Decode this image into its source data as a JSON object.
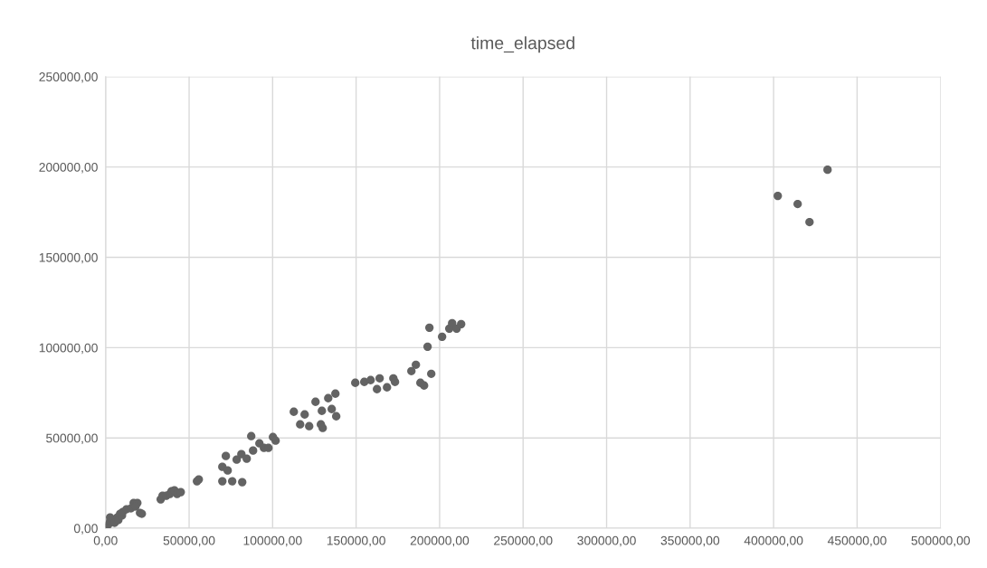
{
  "chart_data": {
    "type": "scatter",
    "title": "time_elapsed",
    "marker": "circle",
    "grid": true,
    "xlim": [
      0,
      500000
    ],
    "ylim": [
      0,
      250000
    ],
    "xticks": [
      {
        "value": 0,
        "label": "0,00"
      },
      {
        "value": 50000,
        "label": "50000,00"
      },
      {
        "value": 100000,
        "label": "100000,00"
      },
      {
        "value": 150000,
        "label": "150000,00"
      },
      {
        "value": 200000,
        "label": "200000,00"
      },
      {
        "value": 250000,
        "label": "250000,00"
      },
      {
        "value": 300000,
        "label": "300000,00"
      },
      {
        "value": 350000,
        "label": "350000,00"
      },
      {
        "value": 400000,
        "label": "400000,00"
      },
      {
        "value": 450000,
        "label": "450000,00"
      },
      {
        "value": 500000,
        "label": "500000,00"
      }
    ],
    "yticks": [
      {
        "value": 0,
        "label": "0,00"
      },
      {
        "value": 50000,
        "label": "50000,00"
      },
      {
        "value": 100000,
        "label": "100000,00"
      },
      {
        "value": 150000,
        "label": "150000,00"
      },
      {
        "value": 200000,
        "label": "200000,00"
      },
      {
        "value": 250000,
        "label": "250000,00"
      }
    ],
    "series": [
      {
        "color": "#636363",
        "x": [
          500,
          1600,
          2700,
          2700,
          5400,
          7000,
          7600,
          8700,
          9800,
          10300,
          12500,
          15200,
          16800,
          19000,
          17900,
          20600,
          21700,
          33000,
          34100,
          36300,
          38500,
          39500,
          41200,
          42800,
          45000,
          54700,
          55800,
          69900,
          69900,
          72000,
          73100,
          75800,
          78500,
          81300,
          81800,
          84500,
          87200,
          88300,
          92100,
          94800,
          97500,
          100200,
          101800,
          112700,
          116500,
          119200,
          121900,
          125700,
          129500,
          128900,
          130000,
          133300,
          135400,
          137600,
          138100,
          149500,
          154900,
          158700,
          162500,
          164100,
          168500,
          172300,
          173300,
          183100,
          185800,
          188500,
          190700,
          192800,
          193900,
          195000,
          201500,
          205800,
          207500,
          210200,
          212900,
          402500,
          414400,
          421500,
          432300
        ],
        "values": [
          500,
          2000,
          4000,
          6000,
          3000,
          6000,
          4500,
          8000,
          7000,
          9000,
          10500,
          11000,
          14000,
          14000,
          12000,
          8500,
          8000,
          16000,
          18000,
          18000,
          19000,
          20500,
          21000,
          19000,
          20000,
          26000,
          27000,
          34000,
          26000,
          40000,
          32000,
          26000,
          38000,
          41000,
          25500,
          38500,
          51000,
          43000,
          47000,
          44500,
          44500,
          50500,
          48500,
          64500,
          57500,
          63000,
          56500,
          70000,
          65000,
          57500,
          55500,
          72000,
          66000,
          74500,
          62000,
          80500,
          81000,
          82000,
          77000,
          83000,
          78000,
          83000,
          81000,
          87000,
          90500,
          80500,
          79000,
          100500,
          111000,
          85500,
          106000,
          110500,
          113500,
          110500,
          113000,
          184000,
          179500,
          169500,
          198500
        ]
      }
    ]
  }
}
